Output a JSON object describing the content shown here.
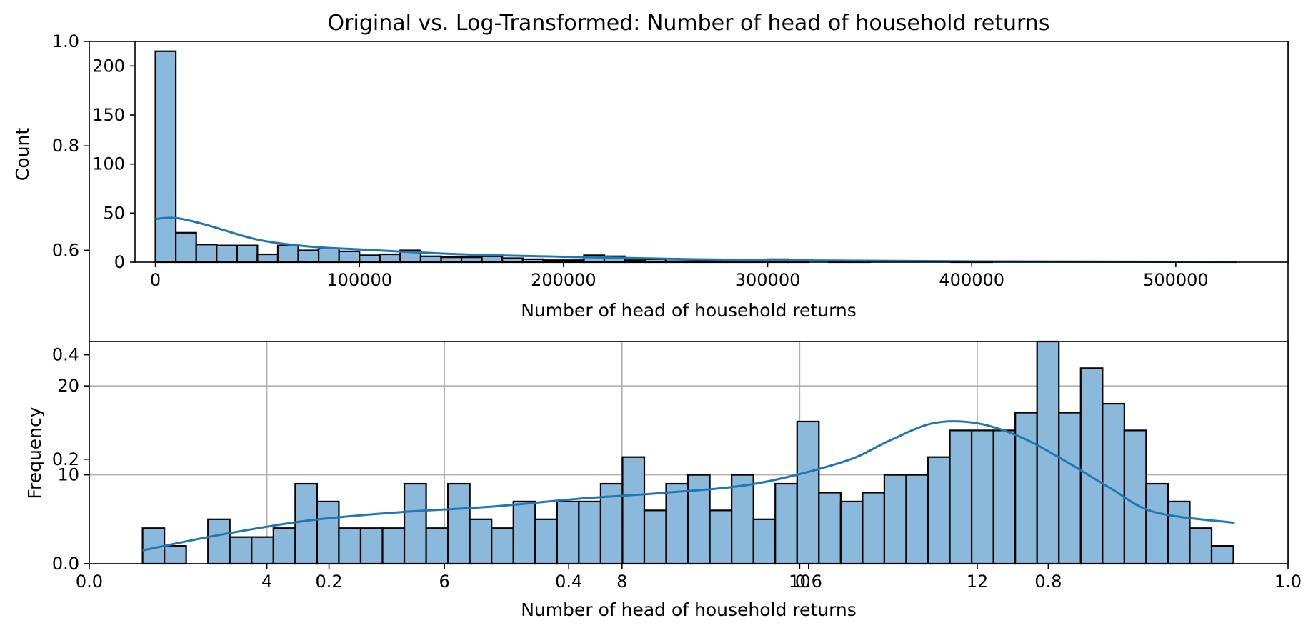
{
  "figure": {
    "title": "Original vs. Log-Transformed: Number of head of household returns",
    "ghost_axis": {
      "y_ticks": [
        "0.0",
        "0.2",
        "0.4",
        "0.6",
        "0.8",
        "1.0"
      ],
      "x_ticks": [
        "0.0",
        "0.2",
        "0.4",
        "0.6",
        "0.8",
        "1.0"
      ]
    }
  },
  "chart_data": [
    {
      "type": "bar",
      "kind": "histogram with KDE",
      "xlabel": "Number of head of household returns",
      "ylabel": "Count",
      "xlim": [
        -10000,
        555000
      ],
      "ylim": [
        0,
        225
      ],
      "x_ticks": [
        0,
        100000,
        200000,
        300000,
        400000,
        500000
      ],
      "y_ticks": [
        0,
        50,
        100,
        150,
        200
      ],
      "bin_start": 0,
      "bin_width": 10000,
      "values": [
        215,
        30,
        18,
        17,
        17,
        8,
        17,
        12,
        14,
        11,
        7,
        8,
        12,
        6,
        5,
        5,
        6,
        4,
        3,
        2,
        2,
        7,
        6,
        2,
        3,
        1,
        1,
        1,
        1,
        1,
        3,
        1,
        0,
        1,
        1,
        0,
        0,
        0,
        0,
        1,
        1,
        0,
        0,
        0,
        0,
        0,
        0,
        0,
        0,
        0
      ],
      "kde": {
        "x": [
          0,
          10000,
          25000,
          50000,
          75000,
          100000,
          150000,
          200000,
          250000,
          300000,
          400000,
          530000
        ],
        "y": [
          44,
          45,
          38,
          23,
          16,
          13,
          8,
          5.5,
          3.5,
          2,
          0.8,
          0.3
        ]
      },
      "grid": false,
      "color": "#8bb9dc",
      "line_color": "#1f77b4"
    },
    {
      "type": "bar",
      "kind": "histogram with KDE",
      "xlabel": "Number of head of household returns",
      "ylabel": "Frequency",
      "xlim": [
        2.0,
        15.5
      ],
      "ylim": [
        0,
        25
      ],
      "x_ticks": [
        4,
        6,
        8,
        10,
        12
      ],
      "y_ticks": [
        0,
        10,
        20
      ],
      "bin_start": 2.6,
      "bin_width": 0.2457,
      "values": [
        4,
        2,
        0,
        5,
        3,
        3,
        4,
        9,
        7,
        4,
        4,
        4,
        9,
        4,
        9,
        5,
        4,
        7,
        5,
        7,
        7,
        9,
        12,
        6,
        9,
        10,
        6,
        10,
        5,
        9,
        16,
        8,
        7,
        8,
        10,
        10,
        12,
        15,
        15,
        15,
        17,
        25,
        17,
        22,
        18,
        15,
        9,
        7,
        4,
        2
      ],
      "kde": {
        "x": [
          2.6,
          3.5,
          4.5,
          5.5,
          6.5,
          7.5,
          8.5,
          9.5,
          10.5,
          11.0,
          11.5,
          12.0,
          12.5,
          13.0,
          13.5,
          14.0,
          14.9
        ],
        "y": [
          1.5,
          3.3,
          4.9,
          5.8,
          6.4,
          7.3,
          8.0,
          9.0,
          11.5,
          13.8,
          15.8,
          15.8,
          14.2,
          11.5,
          8.5,
          5.8,
          4.6
        ]
      },
      "grid": true,
      "color": "#8bb9dc",
      "line_color": "#1f77b4"
    }
  ]
}
